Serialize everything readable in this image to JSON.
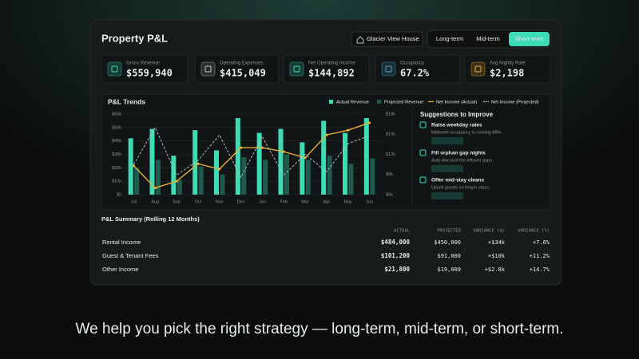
{
  "header": {
    "title": "Property P&L",
    "property": "Glacier View House",
    "tabs": [
      "Long-term",
      "Mid-term",
      "Short-term"
    ],
    "active_tab": 2
  },
  "kpis": [
    {
      "label": "Gross Revenue",
      "value": "$559,940"
    },
    {
      "label": "Operating Expenses",
      "value": "$415,049"
    },
    {
      "label": "Net Operating Income",
      "value": "$144,892"
    },
    {
      "label": "Occupancy",
      "value": "67.2%"
    },
    {
      "label": "Avg Nightly Rate",
      "value": "$2,198"
    }
  ],
  "chart_data": {
    "type": "bar",
    "title": "P&L Trends",
    "categories": [
      "Jul",
      "Aug",
      "Sep",
      "Oct",
      "Nov",
      "Dec",
      "Jan",
      "Feb",
      "Mar",
      "Apr",
      "May",
      "Jun"
    ],
    "series": [
      {
        "name": "Actual Revenue",
        "type": "bar",
        "color": "#3ddbb6",
        "values": [
          42000,
          49000,
          29000,
          48000,
          33000,
          57000,
          46000,
          49000,
          39000,
          55000,
          46000,
          57000
        ]
      },
      {
        "name": "Projected Revenue",
        "type": "bar",
        "color": "#1f5a4c",
        "values": [
          20000,
          26000,
          11000,
          21000,
          15000,
          28000,
          26000,
          30000,
          26000,
          29000,
          23000,
          27000
        ]
      },
      {
        "name": "Net Income (Actual)",
        "type": "line",
        "axis": "y2",
        "color": "#e8b03a",
        "style": "solid",
        "values": [
          10300,
          7000,
          8000,
          10600,
          9800,
          13000,
          13000,
          12400,
          11500,
          14900,
          15600,
          16700
        ]
      },
      {
        "name": "Net Income (Projected)",
        "type": "line",
        "axis": "y2",
        "color": "#c3c8c8",
        "style": "dashed",
        "values": [
          10500,
          16000,
          8900,
          11100,
          14900,
          8600,
          14600,
          8900,
          12000,
          9400,
          13600,
          14800
        ]
      }
    ],
    "ylim": [
      0,
      60000
    ],
    "yticks": [
      {
        "value": 0,
        "label": "$0"
      },
      {
        "value": 10000,
        "label": "$10k"
      },
      {
        "value": 20000,
        "label": "$20k"
      },
      {
        "value": 30000,
        "label": "$30k"
      },
      {
        "value": 40000,
        "label": "$40k"
      },
      {
        "value": 50000,
        "label": "$50k"
      },
      {
        "value": 60000,
        "label": "$60k"
      }
    ],
    "y2lim": [
      6000,
      18000
    ],
    "y2ticks": [
      {
        "value": 6000,
        "label": "$6k"
      },
      {
        "value": 9000,
        "label": "$9k"
      },
      {
        "value": 12000,
        "label": "$12k"
      },
      {
        "value": 15000,
        "label": "$15k"
      },
      {
        "value": 18000,
        "label": "$18k"
      }
    ],
    "grid": true
  },
  "suggestions": {
    "title": "Suggestions to Improve",
    "items": [
      {
        "title": "Raise weekday rates",
        "description": "Midweek occupancy is running 88%."
      },
      {
        "title": "Fill orphan gap nights",
        "description": "Auto-discount the leftover gaps."
      },
      {
        "title": "Offer mid-stay cleans",
        "description": "Upsell guests on longer stays."
      }
    ]
  },
  "table": {
    "title": "P&L Summary (Rolling 12 Months)",
    "columns": [
      "ACTUAL",
      "PROJECTED",
      "VARIANCE ($)",
      "VARIANCE (%)"
    ],
    "rows": [
      [
        "Rental Income",
        "$484,000",
        "$450,000",
        "+$34k",
        "+7.6%"
      ],
      [
        "Guest & Tenant Fees",
        "$101,200",
        "$91,000",
        "+$10k",
        "+11.2%"
      ],
      [
        "Other Income",
        "$21,800",
        "$19,000",
        "+$2.8k",
        "+14.7%"
      ]
    ]
  },
  "caption": "We help you pick the right strategy — long-term, mid-term, or short-term."
}
